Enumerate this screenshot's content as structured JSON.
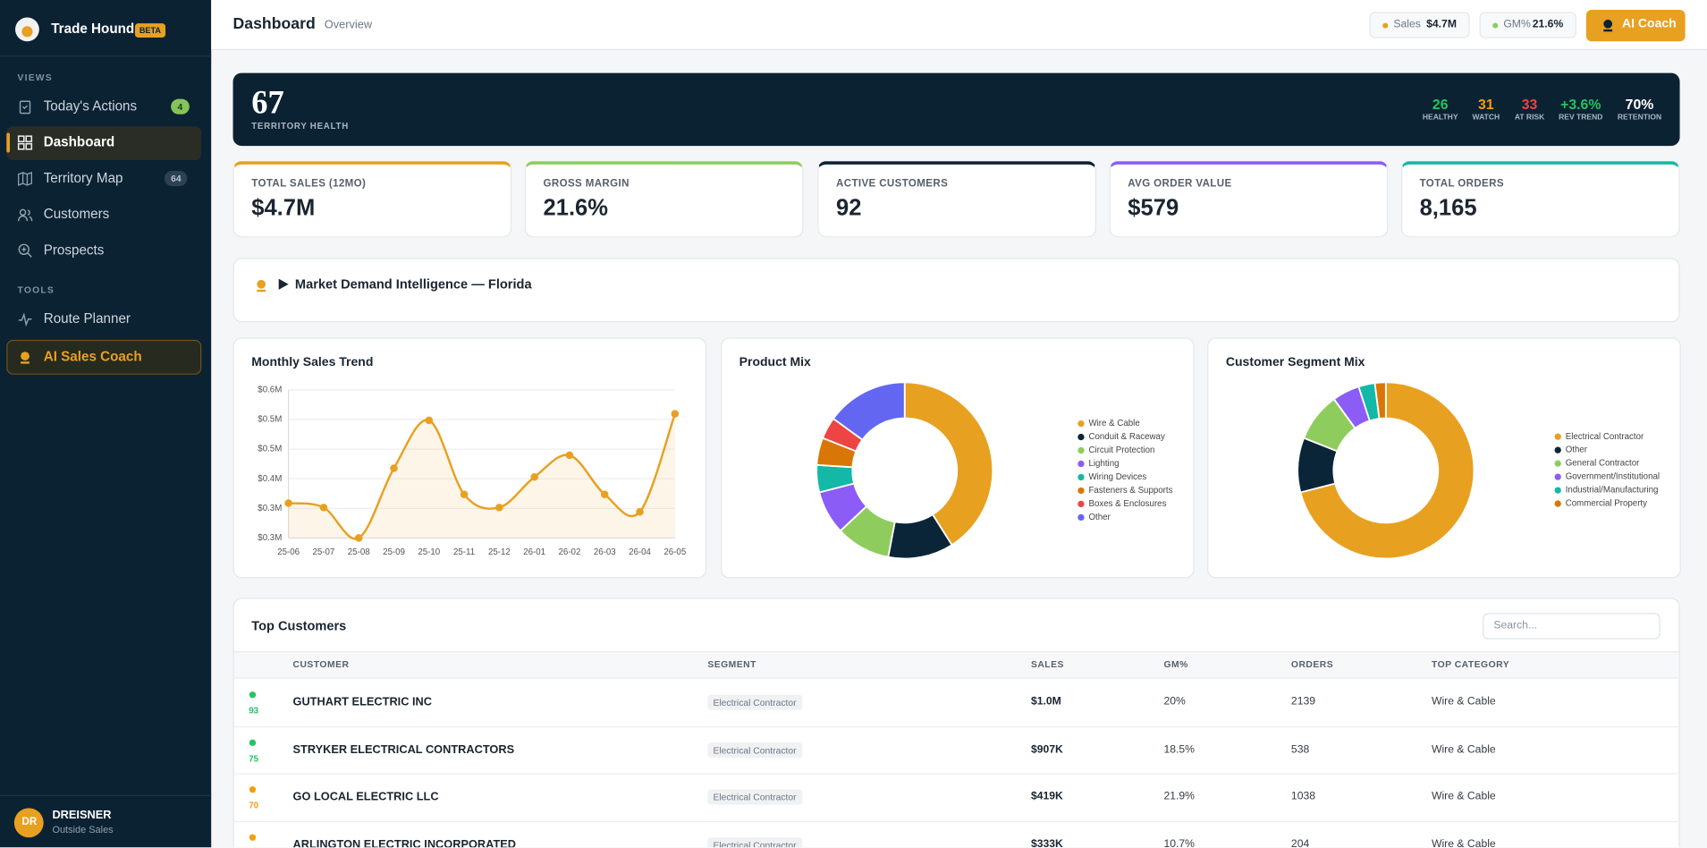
{
  "sidebar": {
    "brand": "Trade Hounds",
    "badge": "BETA",
    "sections": [
      {
        "title": "VIEWS",
        "items": [
          {
            "label": "Today's Actions",
            "count": "4"
          },
          {
            "label": "Dashboard"
          },
          {
            "label": "Territory Map",
            "count": "64"
          },
          {
            "label": "Customers"
          },
          {
            "label": "Prospects"
          }
        ]
      },
      {
        "title": "TOOLS",
        "items": [
          {
            "label": "Route Planner"
          },
          {
            "label": "AI Sales Coach"
          }
        ]
      }
    ],
    "user": {
      "initials": "DR",
      "name": "DREISNER",
      "role": "Outside Sales"
    }
  },
  "header": {
    "title": "Dashboard",
    "subtitle": "Overview",
    "pills": [
      {
        "label": "Sales",
        "value": "$4.7M"
      },
      {
        "label": "GM%",
        "value": "21.6%"
      }
    ],
    "button": "AI Coach"
  },
  "health": {
    "score": "67",
    "label": "TERRITORY HEALTH",
    "stats": [
      {
        "value": "26",
        "label": "HEALTHY"
      },
      {
        "value": "31",
        "label": "WATCH"
      },
      {
        "value": "33",
        "label": "AT RISK"
      },
      {
        "value": "+3.6%",
        "label": "REV TREND"
      },
      {
        "value": "70%",
        "label": "RETENTION"
      }
    ]
  },
  "kpis": [
    {
      "label": "TOTAL SALES (12MO)",
      "value": "$4.7M"
    },
    {
      "label": "GROSS MARGIN",
      "value": "21.6%"
    },
    {
      "label": "ACTIVE CUSTOMERS",
      "value": "92"
    },
    {
      "label": "AVG ORDER VALUE",
      "value": "$579"
    },
    {
      "label": "TOTAL ORDERS",
      "value": "8,165"
    }
  ],
  "market": {
    "title": "Market Demand Intelligence — Florida"
  },
  "chart_data": [
    {
      "type": "line",
      "title": "Monthly Sales Trend",
      "color": "#e8a020",
      "categories": [
        "25-06",
        "25-07",
        "25-08",
        "25-09",
        "25-10",
        "25-11",
        "25-12",
        "26-01",
        "26-02",
        "26-03",
        "26-04",
        "26-05"
      ],
      "values": [
        0.34,
        0.33,
        0.26,
        0.42,
        0.53,
        0.36,
        0.33,
        0.4,
        0.45,
        0.36,
        0.32,
        0.545
      ],
      "ylim": [
        0.26,
        0.6
      ],
      "yticks": [
        {
          "value": 0.26,
          "label": "$0.3M"
        },
        {
          "value": 0.328,
          "label": "$0.3M"
        },
        {
          "value": 0.396,
          "label": "$0.4M"
        },
        {
          "value": 0.464,
          "label": "$0.5M"
        },
        {
          "value": 0.532,
          "label": "$0.5M"
        },
        {
          "value": 0.6,
          "label": "$0.6M"
        }
      ],
      "grid": true
    },
    {
      "type": "donut",
      "title": "Product Mix",
      "categories": [
        "Wire & Cable",
        "Conduit & Raceway",
        "Circuit Protection",
        "Lighting",
        "Wiring Devices",
        "Fasteners & Supports",
        "Boxes & Enclosures",
        "Other"
      ],
      "values": [
        41,
        12,
        10,
        8,
        5,
        5,
        4,
        15
      ],
      "colors": [
        "#e8a020",
        "#0b2538",
        "#8fcc5e",
        "#8b5cf6",
        "#14b8a6",
        "#d97706",
        "#ef4444",
        "#6366f1"
      ]
    },
    {
      "type": "donut",
      "title": "Customer Segment Mix",
      "categories": [
        "Electrical Contractor",
        "Other",
        "General Contractor",
        "Government/Institutional",
        "Industrial/Manufacturing",
        "Commercial Property"
      ],
      "values": [
        71,
        10,
        9,
        5,
        3,
        2
      ],
      "colors": [
        "#e8a020",
        "#0b2538",
        "#8fcc5e",
        "#8b5cf6",
        "#14b8a6",
        "#d97706"
      ]
    }
  ],
  "table": {
    "title": "Top Customers",
    "search": "Search...",
    "columns": [
      "CUSTOMER",
      "SEGMENT",
      "SALES",
      "GM%",
      "ORDERS",
      "TOP CATEGORY"
    ],
    "rows": [
      {
        "score": "93",
        "customer": "GUTHART ELECTRIC INC",
        "segment": "Electrical Contractor",
        "sales": "$1.0M",
        "gm": "20%",
        "orders": "2139",
        "category": "Wire & Cable"
      },
      {
        "score": "75",
        "customer": "STRYKER ELECTRICAL CONTRACTORS",
        "segment": "Electrical Contractor",
        "sales": "$907K",
        "gm": "18.5%",
        "orders": "538",
        "category": "Wire & Cable"
      },
      {
        "score": "70",
        "customer": "GO LOCAL ELECTRIC LLC",
        "segment": "Electrical Contractor",
        "sales": "$419K",
        "gm": "21.9%",
        "orders": "1038",
        "category": "Wire & Cable"
      },
      {
        "customer": "ARLINGTON ELECTRIC INCORPORATED",
        "segment": "Electrical Contractor",
        "sales": "$333K",
        "gm": "10.7%",
        "orders": "204",
        "category": "Wire & Cable"
      }
    ]
  }
}
